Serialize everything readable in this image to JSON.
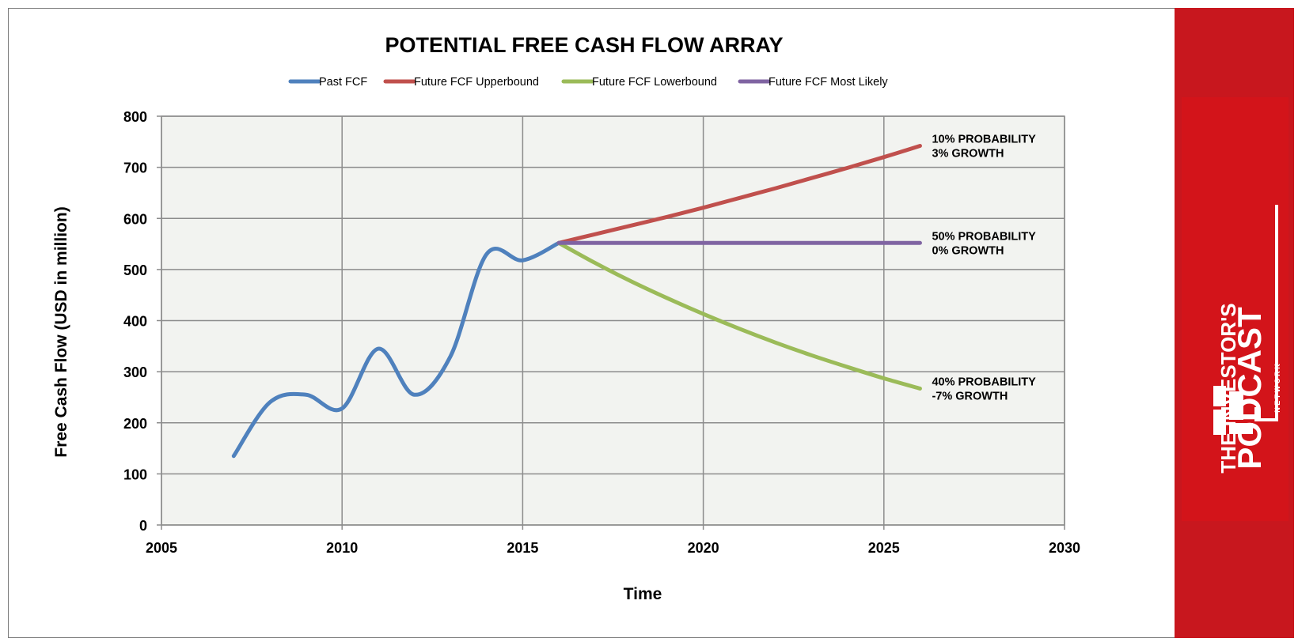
{
  "colors": {
    "past": "#4f81bd",
    "upper": "#c0504d",
    "lower": "#9bbb59",
    "likely": "#8064a2",
    "plot_bg": "#f2f3f0",
    "grid": "#8c8c8c",
    "brand_red": "#c8171e"
  },
  "logo": {
    "line1": "THE INVESTOR'S",
    "line2": "PODCAST",
    "line3": "N E T W O R K"
  },
  "chart_data": {
    "type": "line",
    "title": "POTENTIAL FREE CASH FLOW ARRAY",
    "xlabel": "Time",
    "ylabel": "Free Cash Flow (USD in million)",
    "xlim": [
      2005,
      2030
    ],
    "ylim": [
      0,
      800
    ],
    "xticks": [
      2005,
      2010,
      2015,
      2020,
      2025,
      2030
    ],
    "yticks": [
      0,
      100,
      200,
      300,
      400,
      500,
      600,
      700,
      800
    ],
    "grid": true,
    "legend_position": "top",
    "series": [
      {
        "name": "Past FCF",
        "color_key": "past",
        "x": [
          2007,
          2008,
          2009,
          2010,
          2011,
          2012,
          2013,
          2014,
          2015,
          2016
        ],
        "y": [
          135,
          240,
          255,
          228,
          345,
          255,
          330,
          530,
          518,
          552
        ]
      },
      {
        "name": "Future FCF Upperbound",
        "color_key": "upper",
        "x": [
          2016,
          2017,
          2018,
          2019,
          2020,
          2021,
          2022,
          2023,
          2024,
          2025,
          2026
        ],
        "y": [
          552,
          569,
          586,
          603,
          621,
          640,
          659,
          679,
          699,
          720,
          742
        ]
      },
      {
        "name": "Future FCF Lowerbound",
        "color_key": "lower",
        "x": [
          2016,
          2017,
          2018,
          2019,
          2020,
          2021,
          2022,
          2023,
          2024,
          2025,
          2026
        ],
        "y": [
          552,
          513,
          477,
          444,
          413,
          384,
          357,
          332,
          309,
          287,
          267
        ]
      },
      {
        "name": "Future FCF Most Likely",
        "color_key": "likely",
        "x": [
          2016,
          2017,
          2018,
          2019,
          2020,
          2021,
          2022,
          2023,
          2024,
          2025,
          2026
        ],
        "y": [
          552,
          552,
          552,
          552,
          552,
          552,
          552,
          552,
          552,
          552,
          552
        ]
      }
    ],
    "annotations": [
      {
        "line1": "10% PROBABILITY",
        "line2": "3% GROWTH",
        "x": 2026,
        "y": 742
      },
      {
        "line1": "50% PROBABILITY",
        "line2": "0% GROWTH",
        "x": 2026,
        "y": 552
      },
      {
        "line1": "40% PROBABILITY",
        "line2": "-7% GROWTH",
        "x": 2026,
        "y": 267
      }
    ]
  }
}
